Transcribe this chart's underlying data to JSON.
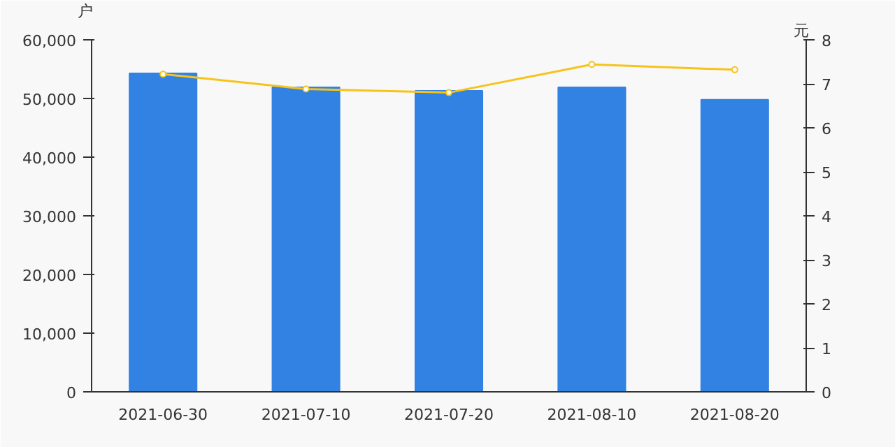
{
  "chart_data": {
    "type": "bar",
    "categories": [
      "2021-06-30",
      "2021-07-10",
      "2021-07-20",
      "2021-08-10",
      "2021-08-20"
    ],
    "ylabel": "户",
    "y2label": "元",
    "series": [
      {
        "color": "#3182e3",
        "values": [
          54300,
          51900,
          51300,
          51900,
          49800
        ]
      },
      {
        "type": "line",
        "axis": "y2",
        "color": "#f7c31a",
        "marker": "circle",
        "values": [
          7.22,
          6.88,
          6.8,
          7.44,
          7.32
        ]
      }
    ],
    "ylim": [
      0,
      60000
    ],
    "yticks": [
      0,
      {
        "value": 10000,
        "label": "10,000"
      },
      {
        "value": 20000,
        "label": "20,000"
      },
      {
        "value": 30000,
        "label": "30,000"
      },
      {
        "value": 40000,
        "label": "40,000"
      },
      {
        "value": 50000,
        "label": "50,000"
      },
      {
        "value": 60000,
        "label": "60,000"
      }
    ],
    "y2lim": [
      0,
      8
    ],
    "y2ticks": [
      0,
      1,
      2,
      3,
      4,
      5,
      6,
      7,
      8
    ],
    "grid": false
  }
}
